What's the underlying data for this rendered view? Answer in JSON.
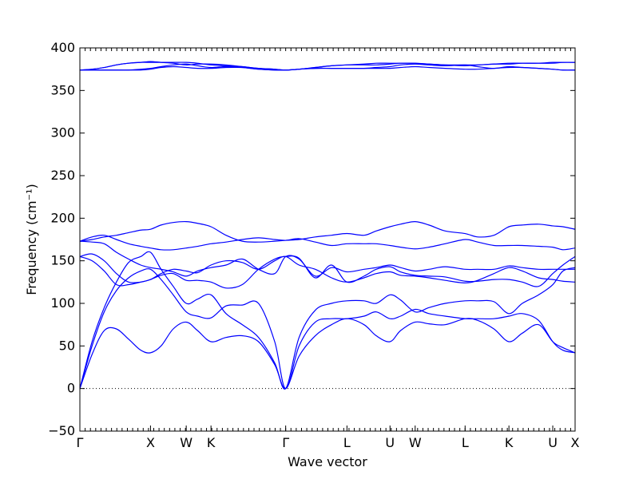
{
  "chart_data": {
    "type": "line",
    "title": "",
    "xlabel": "Wave vector",
    "ylabel": "Frequency (cm⁻¹)",
    "ylim": [
      -50,
      400
    ],
    "yticks": [
      -50,
      0,
      50,
      100,
      150,
      200,
      250,
      300,
      350,
      400
    ],
    "xlim": [
      0,
      12.2
    ],
    "high_symmetry_points": [
      {
        "label": "Γ",
        "x": 0
      },
      {
        "label": "X",
        "x": 1.74
      },
      {
        "label": "W",
        "x": 2.62
      },
      {
        "label": "K",
        "x": 3.23
      },
      {
        "label": "Γ",
        "x": 5.07
      },
      {
        "label": "L",
        "x": 6.58
      },
      {
        "label": "U",
        "x": 7.64
      },
      {
        "label": "W",
        "x": 8.26
      },
      {
        "label": "L",
        "x": 9.49
      },
      {
        "label": "K",
        "x": 10.57
      },
      {
        "label": "U",
        "x": 11.65
      },
      {
        "label": "X",
        "x": 12.2
      }
    ],
    "zero_line": true,
    "line_color": "#0000ff",
    "series": [
      {
        "x": [
          0,
          0.3,
          0.6,
          0.9,
          1.2,
          1.5,
          1.74,
          2.0,
          2.3,
          2.62,
          2.9,
          3.23,
          3.6,
          4.0,
          4.4,
          4.8,
          5.07,
          5.4,
          5.8,
          6.2,
          6.58,
          7.0,
          7.3,
          7.64,
          7.9,
          8.26,
          8.6,
          9.0,
          9.49,
          9.8,
          10.2,
          10.57,
          10.9,
          11.3,
          11.65,
          11.9,
          12.2
        ],
        "y": [
          0,
          40,
          68,
          70,
          58,
          45,
          42,
          50,
          70,
          78,
          68,
          55,
          60,
          62,
          55,
          28,
          0,
          38,
          62,
          75,
          82,
          75,
          62,
          55,
          68,
          78,
          76,
          75,
          82,
          80,
          70,
          55,
          65,
          75,
          55,
          48,
          42
        ]
      },
      {
        "x": [
          0,
          0.3,
          0.6,
          0.9,
          1.2,
          1.5,
          1.74,
          2.0,
          2.3,
          2.62,
          2.9,
          3.23,
          3.6,
          4.0,
          4.4,
          4.8,
          5.07,
          5.4,
          5.8,
          6.2,
          6.58,
          7.0,
          7.3,
          7.64,
          7.9,
          8.26,
          8.6,
          9.0,
          9.49,
          9.8,
          10.2,
          10.57,
          10.9,
          11.3,
          11.65,
          11.9,
          12.2
        ],
        "y": [
          0,
          50,
          90,
          115,
          130,
          138,
          140,
          128,
          110,
          90,
          85,
          83,
          97,
          98,
          100,
          55,
          0,
          50,
          78,
          82,
          82,
          85,
          90,
          82,
          85,
          93,
          88,
          85,
          82,
          82,
          82,
          85,
          88,
          80,
          55,
          45,
          42
        ]
      },
      {
        "x": [
          0,
          0.3,
          0.6,
          0.9,
          1.2,
          1.5,
          1.74,
          2.0,
          2.3,
          2.62,
          2.9,
          3.23,
          3.6,
          4.0,
          4.4,
          4.8,
          5.07,
          5.4,
          5.8,
          6.2,
          6.58,
          7.0,
          7.3,
          7.64,
          7.9,
          8.26,
          8.6,
          9.0,
          9.49,
          9.8,
          10.2,
          10.57,
          10.9,
          11.3,
          11.65,
          11.9,
          12.2
        ],
        "y": [
          0,
          55,
          95,
          125,
          148,
          155,
          160,
          140,
          120,
          100,
          105,
          110,
          88,
          75,
          60,
          30,
          0,
          60,
          92,
          100,
          103,
          103,
          100,
          110,
          104,
          90,
          95,
          100,
          103,
          103,
          102,
          88,
          100,
          110,
          122,
          138,
          142
        ]
      },
      {
        "x": [
          0,
          0.3,
          0.6,
          0.9,
          1.2,
          1.5,
          1.74,
          2.0,
          2.3,
          2.62,
          2.9,
          3.23,
          3.6,
          4.0,
          4.4,
          4.8,
          5.07,
          5.4,
          5.8,
          6.2,
          6.58,
          7.0,
          7.3,
          7.64,
          7.9,
          8.26,
          8.6,
          9.0,
          9.49,
          9.8,
          10.2,
          10.57,
          10.9,
          11.3,
          11.65,
          11.9,
          12.2
        ],
        "y": [
          155,
          150,
          138,
          122,
          122,
          125,
          128,
          135,
          140,
          138,
          136,
          145,
          150,
          148,
          140,
          150,
          155,
          145,
          140,
          130,
          125,
          130,
          135,
          137,
          133,
          132,
          130,
          127,
          124,
          127,
          135,
          142,
          138,
          130,
          128,
          126,
          125
        ]
      },
      {
        "x": [
          0,
          0.3,
          0.6,
          0.9,
          1.2,
          1.5,
          1.74,
          2.0,
          2.3,
          2.62,
          2.9,
          3.23,
          3.6,
          4.0,
          4.4,
          4.8,
          5.07,
          5.4,
          5.8,
          6.2,
          6.58,
          7.0,
          7.3,
          7.64,
          7.9,
          8.26,
          8.6,
          9.0,
          9.49,
          9.8,
          10.2,
          10.57,
          10.9,
          11.3,
          11.65,
          11.9,
          12.2
        ],
        "y": [
          155,
          158,
          150,
          135,
          125,
          125,
          128,
          133,
          135,
          127,
          127,
          125,
          118,
          122,
          140,
          152,
          155,
          153,
          130,
          145,
          125,
          132,
          140,
          143,
          137,
          133,
          132,
          131,
          126,
          126,
          128,
          128,
          125,
          120,
          135,
          145,
          155
        ]
      },
      {
        "x": [
          0,
          0.3,
          0.6,
          0.9,
          1.2,
          1.5,
          1.74,
          2.0,
          2.3,
          2.62,
          2.9,
          3.23,
          3.6,
          4.0,
          4.4,
          4.8,
          5.07,
          5.4,
          5.8,
          6.2,
          6.58,
          7.0,
          7.3,
          7.64,
          7.9,
          8.26,
          8.6,
          9.0,
          9.49,
          9.8,
          10.2,
          10.57,
          10.9,
          11.3,
          11.65,
          11.9,
          12.2
        ],
        "y": [
          173,
          172,
          170,
          160,
          152,
          145,
          142,
          140,
          137,
          132,
          138,
          142,
          145,
          152,
          140,
          135,
          155,
          152,
          132,
          142,
          137,
          140,
          142,
          145,
          142,
          138,
          140,
          143,
          140,
          140,
          140,
          144,
          142,
          140,
          140,
          140,
          140
        ]
      },
      {
        "x": [
          0,
          0.3,
          0.6,
          0.9,
          1.2,
          1.5,
          1.74,
          2.0,
          2.3,
          2.62,
          2.9,
          3.23,
          3.6,
          4.0,
          4.4,
          4.8,
          5.07,
          5.4,
          5.8,
          6.2,
          6.58,
          7.0,
          7.3,
          7.64,
          7.9,
          8.26,
          8.6,
          9.0,
          9.49,
          9.8,
          10.2,
          10.57,
          10.9,
          11.3,
          11.65,
          11.9,
          12.2
        ],
        "y": [
          173,
          178,
          180,
          175,
          170,
          167,
          165,
          163,
          163,
          165,
          167,
          170,
          172,
          175,
          177,
          175,
          174,
          176,
          172,
          168,
          170,
          170,
          170,
          168,
          166,
          164,
          166,
          170,
          175,
          172,
          168,
          168,
          168,
          167,
          166,
          163,
          165
        ]
      },
      {
        "x": [
          0,
          0.3,
          0.6,
          0.9,
          1.2,
          1.5,
          1.74,
          2.0,
          2.3,
          2.62,
          2.9,
          3.23,
          3.6,
          4.0,
          4.4,
          4.8,
          5.07,
          5.4,
          5.8,
          6.2,
          6.58,
          7.0,
          7.3,
          7.64,
          7.9,
          8.26,
          8.6,
          9.0,
          9.49,
          9.8,
          10.2,
          10.57,
          10.9,
          11.3,
          11.65,
          11.9,
          12.2
        ],
        "y": [
          173,
          175,
          178,
          180,
          183,
          186,
          187,
          192,
          195,
          196,
          194,
          190,
          180,
          173,
          172,
          173,
          174,
          175,
          178,
          180,
          182,
          180,
          185,
          190,
          193,
          196,
          192,
          185,
          182,
          178,
          180,
          190,
          192,
          193,
          191,
          190,
          187
        ]
      },
      {
        "x": [
          0,
          0.3,
          0.6,
          0.9,
          1.2,
          1.5,
          1.74,
          2.0,
          2.3,
          2.62,
          2.9,
          3.23,
          3.6,
          4.0,
          4.4,
          4.8,
          5.07,
          5.4,
          5.8,
          6.2,
          6.58,
          7.0,
          7.3,
          7.64,
          7.9,
          8.26,
          8.6,
          9.0,
          9.49,
          9.8,
          10.2,
          10.57,
          10.9,
          11.3,
          11.65,
          11.9,
          12.2
        ],
        "y": [
          374,
          375,
          377,
          380,
          382,
          383,
          384,
          383,
          382,
          380,
          381,
          381,
          380,
          378,
          376,
          375,
          374,
          375,
          377,
          379,
          380,
          381,
          382,
          382,
          382,
          382,
          381,
          380,
          380,
          380,
          381,
          381,
          382,
          382,
          382,
          383,
          383
        ]
      },
      {
        "x": [
          0,
          0.3,
          0.6,
          0.9,
          1.2,
          1.5,
          1.74,
          2.0,
          2.3,
          2.62,
          2.9,
          3.23,
          3.6,
          4.0,
          4.4,
          4.8,
          5.07,
          5.4,
          5.8,
          6.2,
          6.58,
          7.0,
          7.3,
          7.64,
          7.9,
          8.26,
          8.6,
          9.0,
          9.49,
          9.8,
          10.2,
          10.57,
          10.9,
          11.3,
          11.65,
          11.9,
          12.2
        ],
        "y": [
          374,
          375,
          377,
          380,
          382,
          383,
          383,
          383,
          383,
          383,
          382,
          380,
          379,
          378,
          376,
          375,
          374,
          375,
          377,
          379,
          380,
          380,
          380,
          381,
          382,
          382,
          381,
          380,
          379,
          380,
          381,
          382,
          382,
          382,
          383,
          383,
          383
        ]
      },
      {
        "x": [
          0,
          0.3,
          0.6,
          0.9,
          1.2,
          1.5,
          1.74,
          2.0,
          2.3,
          2.62,
          2.9,
          3.23,
          3.6,
          4.0,
          4.4,
          4.8,
          5.07,
          5.4,
          5.8,
          6.2,
          6.58,
          7.0,
          7.3,
          7.64,
          7.9,
          8.26,
          8.6,
          9.0,
          9.49,
          9.8,
          10.2,
          10.57,
          10.9,
          11.3,
          11.65,
          11.9,
          12.2
        ],
        "y": [
          374,
          374,
          374,
          374,
          374,
          375,
          376,
          378,
          380,
          381,
          379,
          377,
          378,
          377,
          375,
          374,
          374,
          375,
          376,
          376,
          376,
          376,
          377,
          378,
          380,
          381,
          380,
          379,
          380,
          378,
          376,
          378,
          377,
          376,
          375,
          374,
          374
        ]
      },
      {
        "x": [
          0,
          0.3,
          0.6,
          0.9,
          1.2,
          1.5,
          1.74,
          2.0,
          2.3,
          2.62,
          2.9,
          3.23,
          3.6,
          4.0,
          4.4,
          4.8,
          5.07,
          5.4,
          5.8,
          6.2,
          6.58,
          7.0,
          7.3,
          7.64,
          7.9,
          8.26,
          8.6,
          9.0,
          9.49,
          9.8,
          10.2,
          10.57,
          10.9,
          11.3,
          11.65,
          11.9,
          12.2
        ],
        "y": [
          374,
          374,
          374,
          374,
          374,
          374,
          375,
          377,
          378,
          377,
          376,
          376,
          377,
          377,
          375,
          374,
          374,
          375,
          376,
          376,
          376,
          376,
          376,
          376,
          377,
          378,
          377,
          376,
          375,
          375,
          376,
          377,
          377,
          376,
          375,
          374,
          374
        ]
      }
    ]
  }
}
